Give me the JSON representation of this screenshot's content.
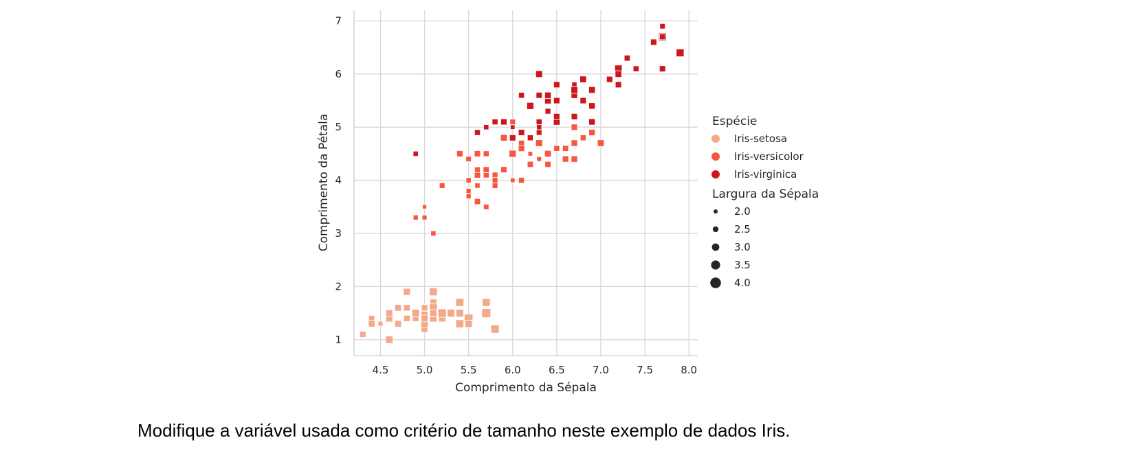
{
  "caption": "Modifique a variável usada como critério de tamanho neste exemplo de dados Iris.",
  "chart_data": {
    "type": "scatter",
    "xlabel": "Comprimento da Sépala",
    "ylabel": "Comprimento da Pétala",
    "xlim": [
      4.2,
      8.1
    ],
    "ylim": [
      0.7,
      7.2
    ],
    "xticks": [
      "4.5",
      "5.0",
      "5.5",
      "6.0",
      "6.5",
      "7.0",
      "7.5",
      "8.0"
    ],
    "yticks": [
      "1",
      "2",
      "3",
      "4",
      "5",
      "6",
      "7"
    ],
    "grid": true,
    "marker": "square",
    "hue_title": "Espécie",
    "size_title": "Largura da Sépala",
    "legend_placement": "right",
    "size_legend": [
      "2.0",
      "2.5",
      "3.0",
      "3.5",
      "4.0"
    ],
    "series": [
      {
        "name": "Iris-setosa",
        "color": "#f4a98a",
        "points": [
          [
            4.3,
            1.1,
            3.0
          ],
          [
            4.4,
            1.4,
            2.9
          ],
          [
            4.4,
            1.3,
            3.0
          ],
          [
            4.4,
            1.3,
            3.2
          ],
          [
            4.5,
            1.3,
            2.3
          ],
          [
            4.6,
            1.4,
            3.1
          ],
          [
            4.6,
            1.0,
            3.6
          ],
          [
            4.6,
            1.4,
            3.4
          ],
          [
            4.6,
            1.5,
            3.2
          ],
          [
            4.7,
            1.3,
            3.2
          ],
          [
            4.7,
            1.6,
            3.2
          ],
          [
            4.8,
            1.4,
            3.0
          ],
          [
            4.8,
            1.6,
            3.4
          ],
          [
            4.8,
            1.9,
            3.4
          ],
          [
            4.8,
            1.6,
            3.1
          ],
          [
            4.9,
            1.5,
            3.1
          ],
          [
            4.9,
            1.4,
            3.0
          ],
          [
            4.9,
            1.5,
            3.6
          ],
          [
            5.0,
            1.4,
            3.6
          ],
          [
            5.0,
            1.5,
            3.4
          ],
          [
            5.0,
            1.2,
            3.2
          ],
          [
            5.0,
            1.3,
            3.5
          ],
          [
            5.0,
            1.6,
            3.5
          ],
          [
            5.0,
            1.6,
            3.0
          ],
          [
            5.0,
            1.4,
            3.3
          ],
          [
            5.1,
            1.4,
            3.5
          ],
          [
            5.1,
            1.5,
            3.7
          ],
          [
            5.1,
            1.7,
            3.3
          ],
          [
            5.1,
            1.9,
            3.8
          ],
          [
            5.1,
            1.6,
            3.8
          ],
          [
            5.1,
            1.5,
            3.4
          ],
          [
            5.2,
            1.5,
            3.4
          ],
          [
            5.2,
            1.4,
            3.4
          ],
          [
            5.2,
            1.5,
            4.1
          ],
          [
            5.3,
            1.5,
            3.7
          ],
          [
            5.4,
            1.7,
            3.9
          ],
          [
            5.4,
            1.5,
            3.4
          ],
          [
            5.4,
            1.3,
            3.9
          ],
          [
            5.4,
            1.5,
            3.7
          ],
          [
            5.5,
            1.4,
            4.2
          ],
          [
            5.5,
            1.3,
            3.5
          ],
          [
            5.7,
            1.5,
            4.4
          ],
          [
            5.7,
            1.7,
            3.8
          ],
          [
            5.8,
            1.2,
            4.0
          ]
        ]
      },
      {
        "name": "Iris-versicolor",
        "color": "#f6573f",
        "points": [
          [
            4.9,
            3.3,
            2.4
          ],
          [
            5.0,
            3.3,
            2.3
          ],
          [
            5.0,
            3.5,
            2.0
          ],
          [
            5.1,
            3.0,
            2.5
          ],
          [
            5.2,
            3.9,
            2.7
          ],
          [
            5.4,
            4.5,
            3.0
          ],
          [
            5.5,
            4.0,
            2.5
          ],
          [
            5.5,
            4.4,
            2.6
          ],
          [
            5.5,
            3.8,
            2.4
          ],
          [
            5.5,
            3.7,
            2.4
          ],
          [
            5.6,
            4.1,
            3.0
          ],
          [
            5.6,
            4.5,
            3.0
          ],
          [
            5.6,
            3.6,
            2.9
          ],
          [
            5.6,
            3.9,
            2.5
          ],
          [
            5.6,
            4.2,
            2.7
          ],
          [
            5.7,
            4.5,
            2.8
          ],
          [
            5.7,
            4.1,
            2.8
          ],
          [
            5.7,
            4.2,
            3.0
          ],
          [
            5.7,
            4.2,
            2.9
          ],
          [
            5.7,
            3.5,
            2.6
          ],
          [
            5.8,
            4.1,
            2.7
          ],
          [
            5.8,
            4.0,
            2.7
          ],
          [
            5.8,
            3.9,
            2.7
          ],
          [
            5.9,
            4.8,
            3.2
          ],
          [
            5.9,
            4.2,
            3.0
          ],
          [
            6.0,
            4.5,
            2.2
          ],
          [
            6.0,
            4.0,
            2.2
          ],
          [
            6.0,
            4.5,
            2.9
          ],
          [
            6.0,
            5.1,
            2.7
          ],
          [
            6.0,
            4.5,
            3.4
          ],
          [
            6.1,
            4.7,
            2.8
          ],
          [
            6.1,
            4.0,
            2.8
          ],
          [
            6.1,
            4.6,
            3.0
          ],
          [
            6.2,
            4.3,
            2.9
          ],
          [
            6.2,
            4.5,
            2.2
          ],
          [
            6.3,
            4.7,
            3.3
          ],
          [
            6.3,
            4.9,
            2.5
          ],
          [
            6.3,
            4.4,
            2.3
          ],
          [
            6.4,
            4.5,
            3.2
          ],
          [
            6.4,
            4.3,
            2.9
          ],
          [
            6.5,
            4.6,
            2.8
          ],
          [
            6.6,
            4.6,
            2.9
          ],
          [
            6.6,
            4.4,
            3.0
          ],
          [
            6.7,
            4.7,
            3.1
          ],
          [
            6.7,
            4.4,
            3.1
          ],
          [
            6.7,
            5.0,
            3.0
          ],
          [
            6.8,
            4.8,
            2.8
          ],
          [
            6.9,
            4.9,
            3.1
          ],
          [
            7.0,
            4.7,
            3.2
          ]
        ]
      },
      {
        "name": "Iris-virginica",
        "color": "#cb181d",
        "points": [
          [
            4.9,
            4.5,
            2.5
          ],
          [
            5.6,
            4.9,
            2.8
          ],
          [
            5.7,
            5.0,
            2.5
          ],
          [
            5.8,
            5.1,
            2.7
          ],
          [
            5.8,
            5.1,
            2.8
          ],
          [
            5.9,
            5.1,
            3.0
          ],
          [
            6.0,
            4.8,
            3.0
          ],
          [
            6.0,
            5.0,
            2.2
          ],
          [
            6.1,
            5.6,
            2.8
          ],
          [
            6.1,
            4.9,
            3.0
          ],
          [
            6.2,
            5.4,
            3.4
          ],
          [
            6.2,
            4.8,
            2.8
          ],
          [
            6.3,
            6.0,
            3.3
          ],
          [
            6.3,
            5.1,
            2.8
          ],
          [
            6.3,
            5.6,
            3.4
          ],
          [
            6.3,
            5.6,
            2.9
          ],
          [
            6.3,
            5.0,
            2.5
          ],
          [
            6.3,
            4.9,
            2.7
          ],
          [
            6.4,
            5.5,
            3.2
          ],
          [
            6.4,
            5.3,
            3.2
          ],
          [
            6.4,
            5.6,
            2.8
          ],
          [
            6.4,
            5.3,
            2.7
          ],
          [
            6.4,
            5.6,
            3.1
          ],
          [
            6.5,
            5.8,
            3.0
          ],
          [
            6.5,
            5.5,
            3.0
          ],
          [
            6.5,
            5.1,
            3.2
          ],
          [
            6.5,
            5.2,
            3.0
          ],
          [
            6.7,
            5.8,
            2.5
          ],
          [
            6.7,
            5.7,
            3.3
          ],
          [
            6.7,
            5.2,
            3.0
          ],
          [
            6.7,
            5.6,
            3.1
          ],
          [
            6.7,
            5.7,
            3.3
          ],
          [
            6.8,
            5.9,
            3.2
          ],
          [
            6.8,
            5.5,
            3.0
          ],
          [
            6.9,
            5.7,
            3.2
          ],
          [
            6.9,
            5.1,
            3.1
          ],
          [
            6.9,
            5.4,
            3.1
          ],
          [
            7.1,
            5.9,
            3.0
          ],
          [
            7.2,
            6.1,
            3.6
          ],
          [
            7.2,
            6.0,
            3.2
          ],
          [
            7.2,
            5.8,
            3.0
          ],
          [
            7.3,
            6.3,
            2.9
          ],
          [
            7.4,
            6.1,
            2.8
          ],
          [
            7.6,
            6.6,
            3.0
          ],
          [
            7.7,
            6.7,
            3.8
          ],
          [
            7.7,
            6.9,
            2.6
          ],
          [
            7.7,
            6.1,
            3.0
          ],
          [
            7.7,
            6.7,
            2.8
          ],
          [
            7.9,
            6.4,
            3.8
          ]
        ]
      }
    ]
  }
}
